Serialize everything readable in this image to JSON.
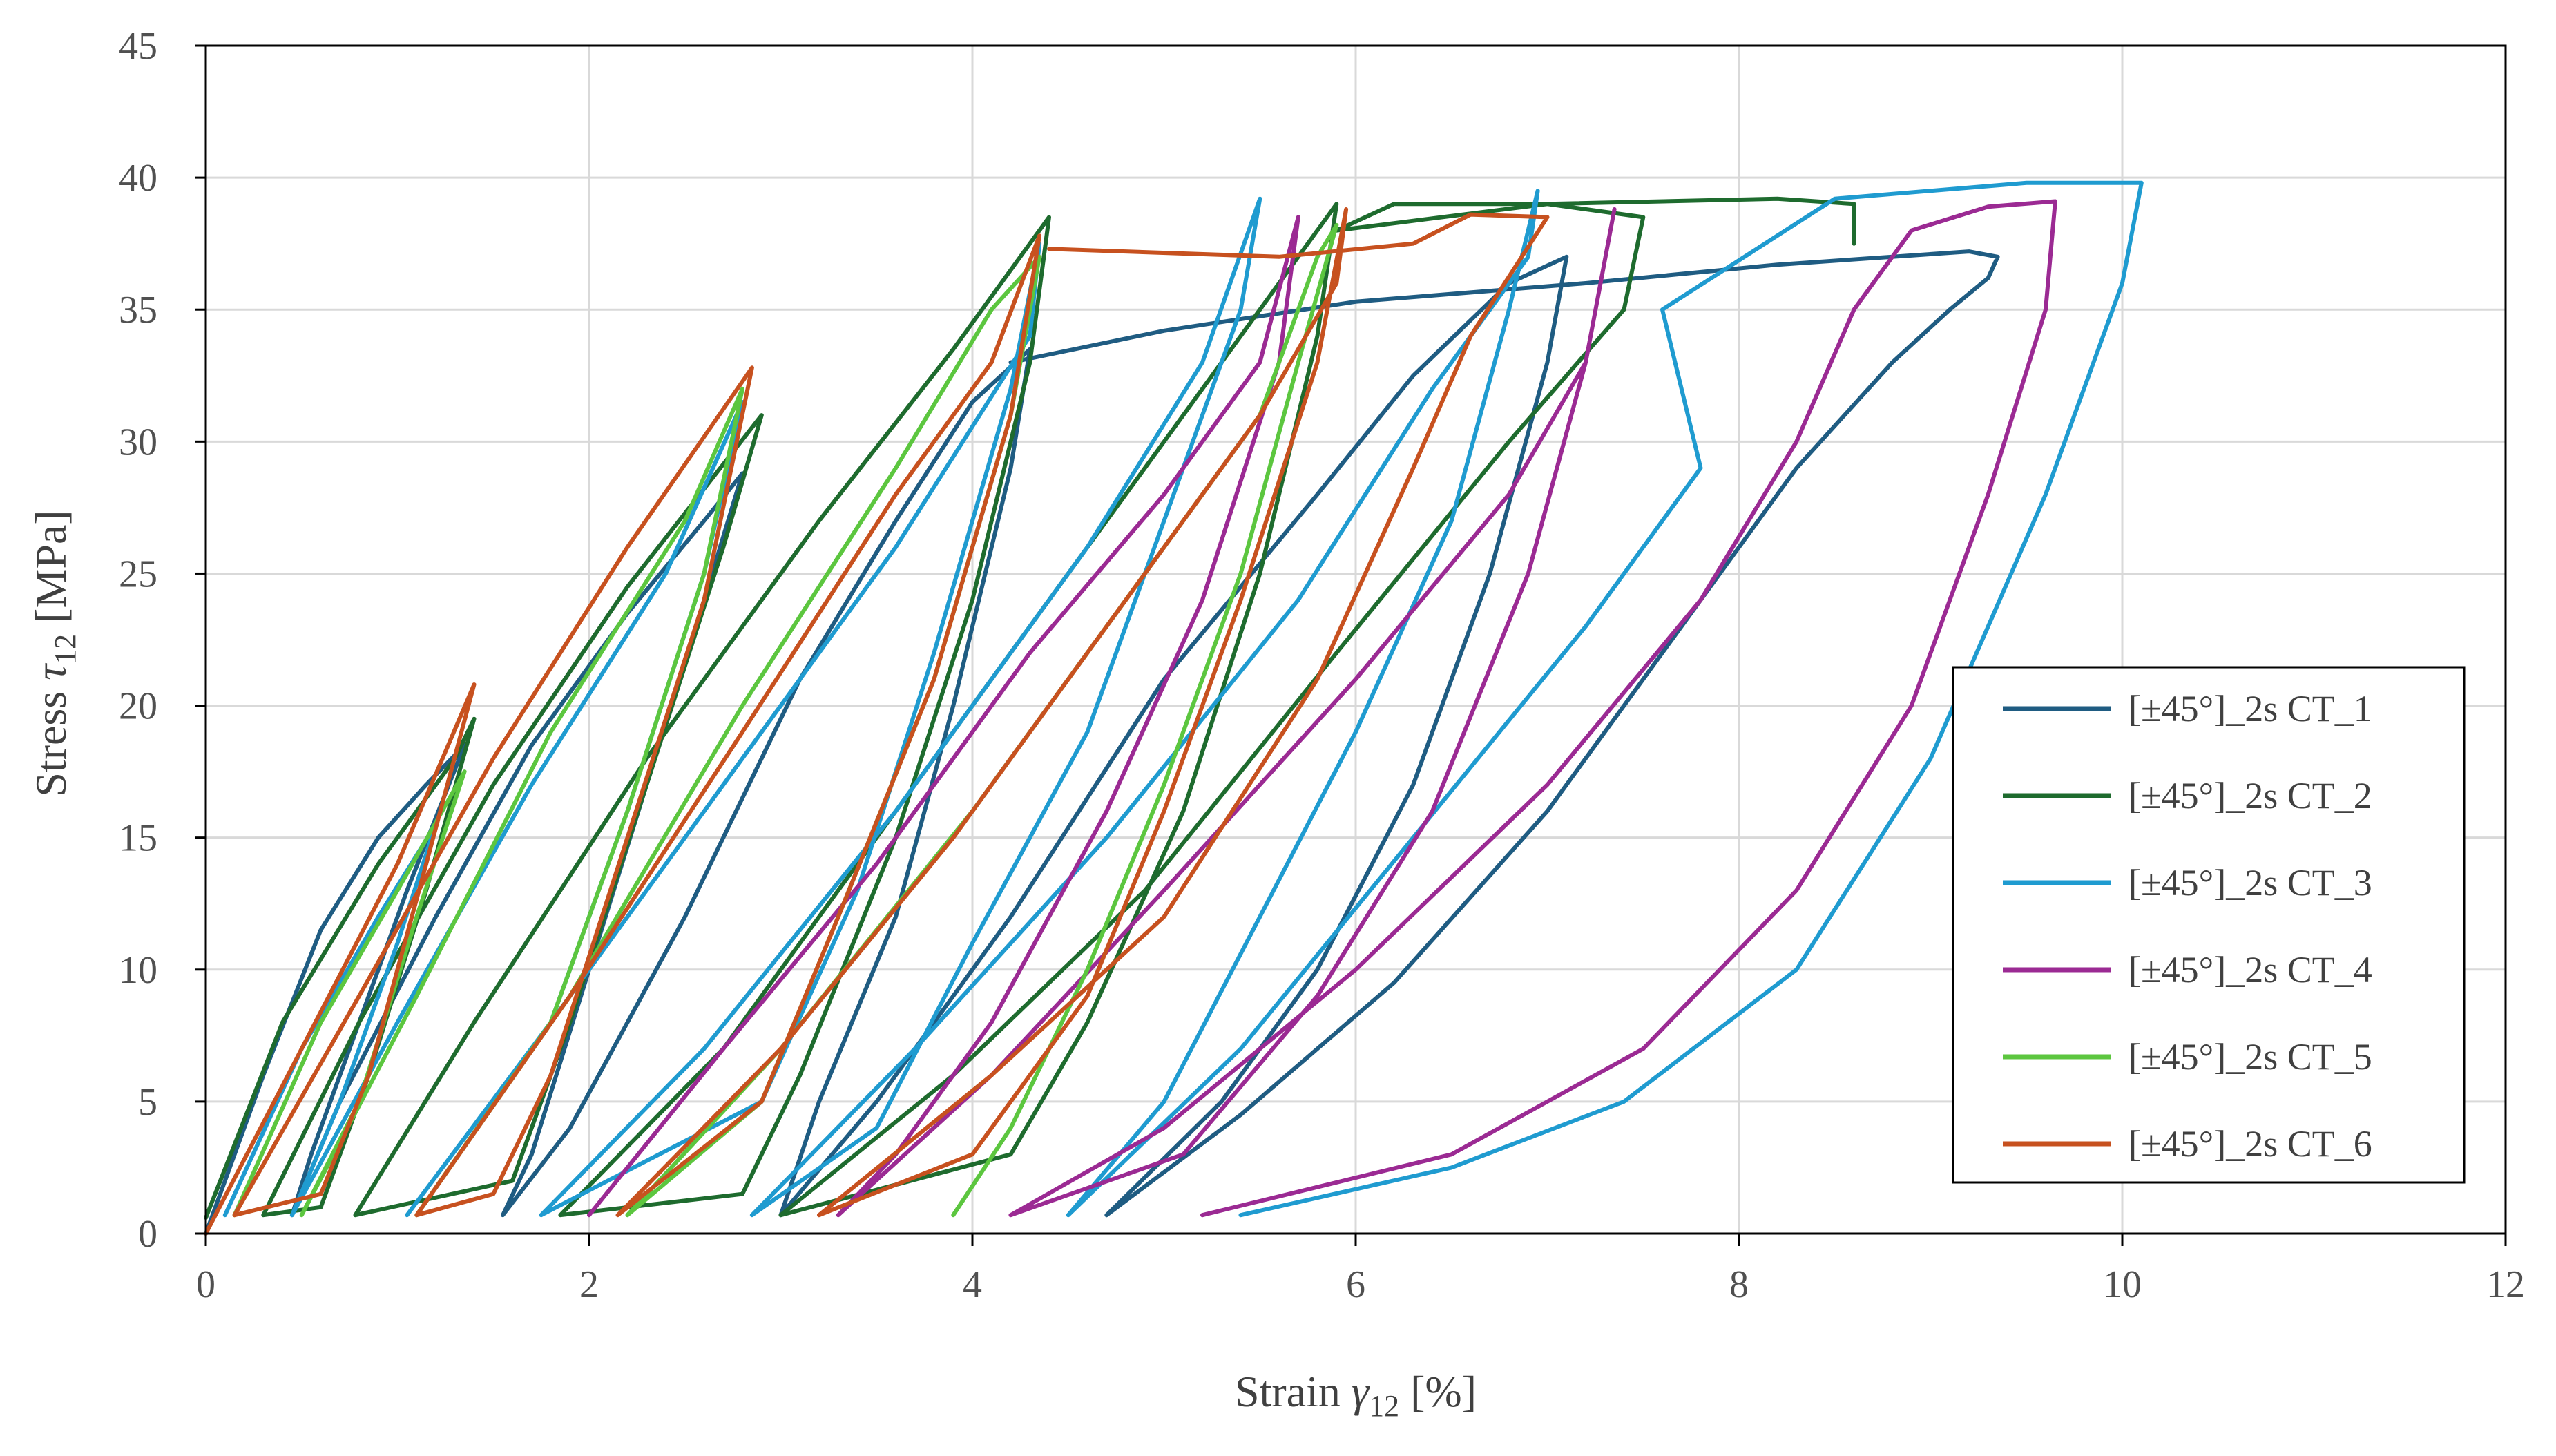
{
  "chart_data": {
    "type": "line",
    "title": "",
    "xlabel": {
      "main": "Strain ",
      "symbol": "γ",
      "sub": "12",
      "unit": " [%]"
    },
    "ylabel": {
      "main": "Stress ",
      "symbol": "τ",
      "sub": "12",
      "unit": " [MPa]"
    },
    "xlim": [
      0,
      12
    ],
    "ylim": [
      0,
      45
    ],
    "xticks": [
      "0",
      "2",
      "4",
      "6",
      "8",
      "10",
      "12"
    ],
    "yticks": [
      "0",
      "5",
      "10",
      "15",
      "20",
      "25",
      "30",
      "35",
      "40",
      "45"
    ],
    "grid": true,
    "legend_position": "bottom-right",
    "series": [
      {
        "name": "[±45°]_2s CT_1",
        "color": "#1f5c82",
        "points": [
          [
            0.0,
            0.0
          ],
          [
            0.3,
            6
          ],
          [
            0.6,
            11.5
          ],
          [
            0.9,
            15
          ],
          [
            1.15,
            17
          ],
          [
            1.35,
            18.5
          ],
          [
            1.05,
            13
          ],
          [
            0.8,
            8
          ],
          [
            0.55,
            3
          ],
          [
            0.45,
            0.7
          ],
          [
            0.7,
            5
          ],
          [
            1.2,
            12
          ],
          [
            1.7,
            18.5
          ],
          [
            2.2,
            23.5
          ],
          [
            2.6,
            27
          ],
          [
            2.8,
            28.8
          ],
          [
            2.6,
            24
          ],
          [
            2.3,
            17
          ],
          [
            2.0,
            10
          ],
          [
            1.7,
            3
          ],
          [
            1.55,
            0.7
          ],
          [
            1.9,
            4
          ],
          [
            2.5,
            12
          ],
          [
            3.1,
            21
          ],
          [
            3.6,
            27
          ],
          [
            4.0,
            31.5
          ],
          [
            4.3,
            33.5
          ],
          [
            4.2,
            29
          ],
          [
            3.9,
            20
          ],
          [
            3.6,
            12
          ],
          [
            3.2,
            5
          ],
          [
            3.0,
            0.7
          ],
          [
            3.5,
            5
          ],
          [
            4.2,
            12
          ],
          [
            5.0,
            21
          ],
          [
            5.8,
            28
          ],
          [
            6.3,
            32.5
          ],
          [
            6.8,
            36
          ],
          [
            7.1,
            37
          ],
          [
            7.0,
            33
          ],
          [
            6.7,
            25
          ],
          [
            6.3,
            17
          ],
          [
            5.8,
            10
          ],
          [
            5.3,
            5
          ],
          [
            4.7,
            0.7
          ],
          [
            5.4,
            4.5
          ],
          [
            6.2,
            9.5
          ],
          [
            7.0,
            16
          ],
          [
            7.7,
            23
          ],
          [
            8.3,
            29
          ],
          [
            8.8,
            33
          ],
          [
            9.1,
            35
          ],
          [
            9.3,
            36.2
          ],
          [
            9.35,
            37
          ],
          [
            9.2,
            37.2
          ],
          [
            8.2,
            36.7
          ],
          [
            7.2,
            36
          ],
          [
            6.0,
            35.3
          ],
          [
            5.0,
            34.2
          ],
          [
            4.2,
            33
          ]
        ]
      },
      {
        "name": "[±45°]_2s CT_2",
        "color": "#1e6b2e",
        "points": [
          [
            0.0,
            0.6
          ],
          [
            0.4,
            8
          ],
          [
            0.9,
            14
          ],
          [
            1.3,
            18
          ],
          [
            1.4,
            19.5
          ],
          [
            1.15,
            13
          ],
          [
            0.85,
            6
          ],
          [
            0.6,
            1
          ],
          [
            0.3,
            0.7
          ],
          [
            0.8,
            8
          ],
          [
            1.5,
            17
          ],
          [
            2.2,
            24.5
          ],
          [
            2.9,
            31
          ],
          [
            2.7,
            26
          ],
          [
            2.3,
            17
          ],
          [
            1.9,
            8
          ],
          [
            1.6,
            2
          ],
          [
            0.78,
            0.7
          ],
          [
            1.4,
            8
          ],
          [
            2.3,
            18
          ],
          [
            3.2,
            27
          ],
          [
            3.9,
            33.5
          ],
          [
            4.4,
            38.5
          ],
          [
            4.3,
            33
          ],
          [
            4.0,
            24
          ],
          [
            3.6,
            15
          ],
          [
            3.1,
            6
          ],
          [
            2.8,
            1.5
          ],
          [
            1.85,
            0.7
          ],
          [
            2.7,
            7
          ],
          [
            3.6,
            16
          ],
          [
            4.6,
            26
          ],
          [
            5.3,
            33
          ],
          [
            5.9,
            39
          ],
          [
            5.8,
            34
          ],
          [
            5.5,
            25
          ],
          [
            5.1,
            16
          ],
          [
            4.6,
            8
          ],
          [
            4.2,
            3
          ],
          [
            3.0,
            0.7
          ],
          [
            3.9,
            6
          ],
          [
            4.9,
            13
          ],
          [
            5.9,
            22
          ],
          [
            6.8,
            30
          ],
          [
            7.4,
            35
          ],
          [
            7.5,
            38.5
          ],
          [
            7.0,
            39
          ],
          [
            6.2,
            39
          ],
          [
            5.9,
            38
          ],
          [
            7.0,
            39
          ],
          [
            8.2,
            39.2
          ],
          [
            8.6,
            39
          ],
          [
            8.6,
            37.5
          ]
        ]
      },
      {
        "name": "[±45°]_2s CT_3",
        "color": "#1f9bd0",
        "points": [
          [
            0.1,
            0.7
          ],
          [
            0.5,
            7
          ],
          [
            0.9,
            12
          ],
          [
            1.2,
            15.5
          ],
          [
            1.0,
            11
          ],
          [
            0.7,
            5
          ],
          [
            0.45,
            0.7
          ],
          [
            1.0,
            8
          ],
          [
            1.7,
            17
          ],
          [
            2.4,
            25
          ],
          [
            2.8,
            31.5
          ],
          [
            2.6,
            25
          ],
          [
            2.2,
            16
          ],
          [
            1.8,
            8
          ],
          [
            1.05,
            0.7
          ],
          [
            1.8,
            8
          ],
          [
            2.7,
            17
          ],
          [
            3.6,
            26
          ],
          [
            4.3,
            34
          ],
          [
            4.35,
            37.5
          ],
          [
            4.2,
            32
          ],
          [
            3.8,
            22
          ],
          [
            3.4,
            13
          ],
          [
            2.9,
            5
          ],
          [
            1.75,
            0.7
          ],
          [
            2.6,
            7
          ],
          [
            3.6,
            16
          ],
          [
            4.6,
            26
          ],
          [
            5.2,
            33
          ],
          [
            5.5,
            39.2
          ],
          [
            5.4,
            35
          ],
          [
            5.0,
            27
          ],
          [
            4.6,
            19
          ],
          [
            4.0,
            11
          ],
          [
            3.5,
            4
          ],
          [
            2.85,
            0.7
          ],
          [
            3.7,
            7
          ],
          [
            4.7,
            15
          ],
          [
            5.7,
            24
          ],
          [
            6.4,
            32
          ],
          [
            6.9,
            37
          ],
          [
            6.95,
            39.5
          ],
          [
            6.8,
            35
          ],
          [
            6.5,
            27
          ],
          [
            6.0,
            19
          ],
          [
            5.5,
            12
          ],
          [
            5.0,
            5
          ],
          [
            4.5,
            0.7
          ],
          [
            5.4,
            7
          ],
          [
            6.3,
            15
          ],
          [
            7.2,
            23
          ],
          [
            7.8,
            29
          ],
          [
            7.6,
            35
          ],
          [
            8.5,
            39.2
          ],
          [
            9.5,
            39.8
          ],
          [
            10.1,
            39.8
          ],
          [
            10.0,
            36
          ],
          [
            9.6,
            28
          ],
          [
            9.0,
            18
          ],
          [
            8.3,
            10
          ],
          [
            7.4,
            5
          ],
          [
            6.5,
            2.5
          ],
          [
            5.4,
            0.7
          ]
        ]
      },
      {
        "name": "[±45°]_2s CT_4",
        "color": "#9b2a93",
        "points": [
          [
            2.0,
            0.7
          ],
          [
            2.7,
            7
          ],
          [
            3.5,
            14
          ],
          [
            4.3,
            22
          ],
          [
            5.0,
            28
          ],
          [
            5.5,
            33
          ],
          [
            5.7,
            38.5
          ],
          [
            5.6,
            33
          ],
          [
            5.2,
            24
          ],
          [
            4.7,
            16
          ],
          [
            4.1,
            8
          ],
          [
            3.6,
            3
          ],
          [
            3.3,
            0.7
          ],
          [
            4.1,
            6
          ],
          [
            5.0,
            13
          ],
          [
            6.0,
            21
          ],
          [
            6.8,
            28
          ],
          [
            7.2,
            33
          ],
          [
            7.35,
            38.8
          ],
          [
            7.2,
            33
          ],
          [
            6.9,
            25
          ],
          [
            6.4,
            16
          ],
          [
            5.8,
            9
          ],
          [
            5.1,
            3
          ],
          [
            4.2,
            0.7
          ],
          [
            5.0,
            4
          ],
          [
            6.0,
            10
          ],
          [
            7.0,
            17
          ],
          [
            7.8,
            24
          ],
          [
            8.3,
            30
          ],
          [
            8.6,
            35
          ],
          [
            8.9,
            38
          ],
          [
            9.3,
            38.9
          ],
          [
            9.65,
            39.1
          ],
          [
            9.6,
            35
          ],
          [
            9.3,
            28
          ],
          [
            8.9,
            20
          ],
          [
            8.3,
            13
          ],
          [
            7.5,
            7
          ],
          [
            6.5,
            3
          ],
          [
            5.2,
            0.7
          ]
        ]
      },
      {
        "name": "[±45°]_2s CT_5",
        "color": "#5cc63f",
        "points": [
          [
            0.15,
            0.7
          ],
          [
            0.6,
            8
          ],
          [
            1.0,
            13
          ],
          [
            1.35,
            17.5
          ],
          [
            1.1,
            12
          ],
          [
            0.8,
            5
          ],
          [
            0.5,
            0.7
          ],
          [
            1.1,
            9
          ],
          [
            1.8,
            19
          ],
          [
            2.5,
            27
          ],
          [
            2.8,
            32
          ],
          [
            2.6,
            25
          ],
          [
            2.2,
            16
          ],
          [
            1.8,
            8
          ],
          [
            1.1,
            0.7
          ],
          [
            1.9,
            9
          ],
          [
            2.8,
            20
          ],
          [
            3.6,
            29
          ],
          [
            4.1,
            35
          ],
          [
            4.35,
            37
          ],
          [
            4.2,
            31
          ],
          [
            3.8,
            21
          ],
          [
            3.3,
            12
          ],
          [
            2.9,
            5
          ],
          [
            2.2,
            0.7
          ],
          [
            3.0,
            7
          ],
          [
            4.0,
            16
          ],
          [
            4.9,
            25
          ],
          [
            5.5,
            31
          ],
          [
            5.8,
            37
          ],
          [
            5.9,
            38.2
          ],
          [
            5.7,
            33
          ],
          [
            5.4,
            25
          ],
          [
            5.0,
            17
          ],
          [
            4.6,
            10
          ],
          [
            4.2,
            4
          ],
          [
            3.9,
            0.7
          ]
        ]
      },
      {
        "name": "[±45°]_2s CT_6",
        "color": "#c7511f",
        "points": [
          [
            0.0,
            0.0
          ],
          [
            0.5,
            7
          ],
          [
            1.0,
            14
          ],
          [
            1.4,
            20.8
          ],
          [
            1.15,
            14
          ],
          [
            0.85,
            6
          ],
          [
            0.6,
            1.5
          ],
          [
            0.15,
            0.7
          ],
          [
            0.8,
            9
          ],
          [
            1.5,
            18
          ],
          [
            2.2,
            26
          ],
          [
            2.85,
            32.8
          ],
          [
            2.6,
            24
          ],
          [
            2.2,
            15
          ],
          [
            1.8,
            6
          ],
          [
            1.5,
            1.5
          ],
          [
            1.1,
            0.7
          ],
          [
            1.9,
            9
          ],
          [
            2.8,
            19
          ],
          [
            3.6,
            28
          ],
          [
            4.1,
            33
          ],
          [
            4.35,
            37.8
          ],
          [
            4.2,
            31
          ],
          [
            3.8,
            21
          ],
          [
            3.3,
            12
          ],
          [
            2.9,
            5
          ],
          [
            2.15,
            0.7
          ],
          [
            3.0,
            7
          ],
          [
            3.9,
            15
          ],
          [
            4.8,
            24
          ],
          [
            5.5,
            31
          ],
          [
            5.9,
            36
          ],
          [
            5.95,
            38.8
          ],
          [
            5.8,
            33
          ],
          [
            5.4,
            24
          ],
          [
            5.0,
            16
          ],
          [
            4.6,
            9
          ],
          [
            4.0,
            3
          ],
          [
            3.2,
            0.7
          ],
          [
            4.1,
            6
          ],
          [
            5.0,
            12
          ],
          [
            5.8,
            21
          ],
          [
            6.3,
            29
          ],
          [
            6.6,
            34
          ],
          [
            7.0,
            38.5
          ],
          [
            6.6,
            38.6
          ],
          [
            6.3,
            37.5
          ],
          [
            5.6,
            37
          ],
          [
            4.4,
            37.3
          ]
        ]
      }
    ]
  }
}
